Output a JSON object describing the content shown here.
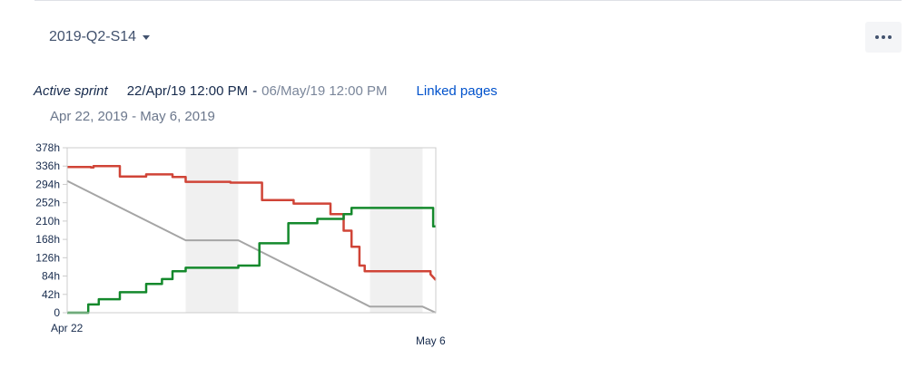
{
  "sprint": {
    "name": "2019-Q2-S14",
    "status": "Active sprint",
    "start": "22/Apr/19 12:00 PM",
    "separator": "-",
    "end": "06/May/19 12:00 PM",
    "linked_pages": "Linked pages",
    "date_range": "Apr 22, 2019 - May 6, 2019"
  },
  "icons": {
    "selector": "chevron-down-icon",
    "more": "more-horizontal-icon"
  },
  "colors": {
    "remaining": "#d04437",
    "completed": "#14892c",
    "guideline": "#a5a5a5",
    "non_working": "#f0f0f0"
  },
  "chart_data": {
    "type": "line",
    "x_start_label": "Apr 22",
    "x_end_label": "May 6",
    "x_range": [
      0,
      14
    ],
    "y_range": [
      0,
      378
    ],
    "y_ticks": [
      "378h",
      "336h",
      "294h",
      "252h",
      "210h",
      "168h",
      "126h",
      "84h",
      "42h",
      "0"
    ],
    "non_working": [
      [
        4.5,
        6.5
      ],
      [
        11.5,
        13.5
      ]
    ],
    "series": [
      {
        "key": "guideline",
        "color": "#a5a5a5",
        "points": [
          [
            0,
            302
          ],
          [
            4.5,
            166
          ],
          [
            6.5,
            166
          ],
          [
            11.5,
            14
          ],
          [
            13.5,
            14
          ],
          [
            14,
            0
          ]
        ]
      },
      {
        "key": "remaining",
        "color": "#d04437",
        "points": [
          [
            0,
            334
          ],
          [
            0.9,
            334
          ],
          [
            0.9,
            333
          ],
          [
            1,
            333
          ],
          [
            1,
            336
          ],
          [
            2,
            336
          ],
          [
            2,
            312
          ],
          [
            3,
            312
          ],
          [
            3,
            317
          ],
          [
            4,
            317
          ],
          [
            4,
            311
          ],
          [
            4.5,
            311
          ],
          [
            4.5,
            300
          ],
          [
            6.2,
            300
          ],
          [
            6.2,
            298
          ],
          [
            7.4,
            298
          ],
          [
            7.4,
            258
          ],
          [
            8.6,
            258
          ],
          [
            8.6,
            250
          ],
          [
            10,
            250
          ],
          [
            10,
            226
          ],
          [
            10.5,
            226
          ],
          [
            10.5,
            188
          ],
          [
            10.8,
            188
          ],
          [
            10.8,
            151
          ],
          [
            11.1,
            151
          ],
          [
            11.1,
            108
          ],
          [
            11.3,
            108
          ],
          [
            11.3,
            95
          ],
          [
            13.8,
            95
          ],
          [
            13.8,
            88
          ],
          [
            14,
            75
          ]
        ]
      },
      {
        "key": "completed",
        "color": "#14892c",
        "points": [
          [
            0,
            0
          ],
          [
            0.8,
            0
          ],
          [
            0.8,
            19
          ],
          [
            1.2,
            19
          ],
          [
            1.2,
            31
          ],
          [
            2,
            31
          ],
          [
            2,
            47
          ],
          [
            3,
            47
          ],
          [
            3,
            66
          ],
          [
            3.6,
            66
          ],
          [
            3.6,
            77
          ],
          [
            4,
            77
          ],
          [
            4,
            95
          ],
          [
            4.5,
            95
          ],
          [
            4.5,
            103
          ],
          [
            6.5,
            103
          ],
          [
            6.5,
            108
          ],
          [
            7.3,
            108
          ],
          [
            7.3,
            159
          ],
          [
            8.4,
            159
          ],
          [
            8.4,
            205
          ],
          [
            9.5,
            205
          ],
          [
            9.5,
            215
          ],
          [
            10.5,
            215
          ],
          [
            10.5,
            226
          ],
          [
            10.8,
            226
          ],
          [
            10.8,
            240
          ],
          [
            13.9,
            240
          ],
          [
            13.9,
            198
          ],
          [
            14,
            198
          ]
        ]
      }
    ]
  }
}
